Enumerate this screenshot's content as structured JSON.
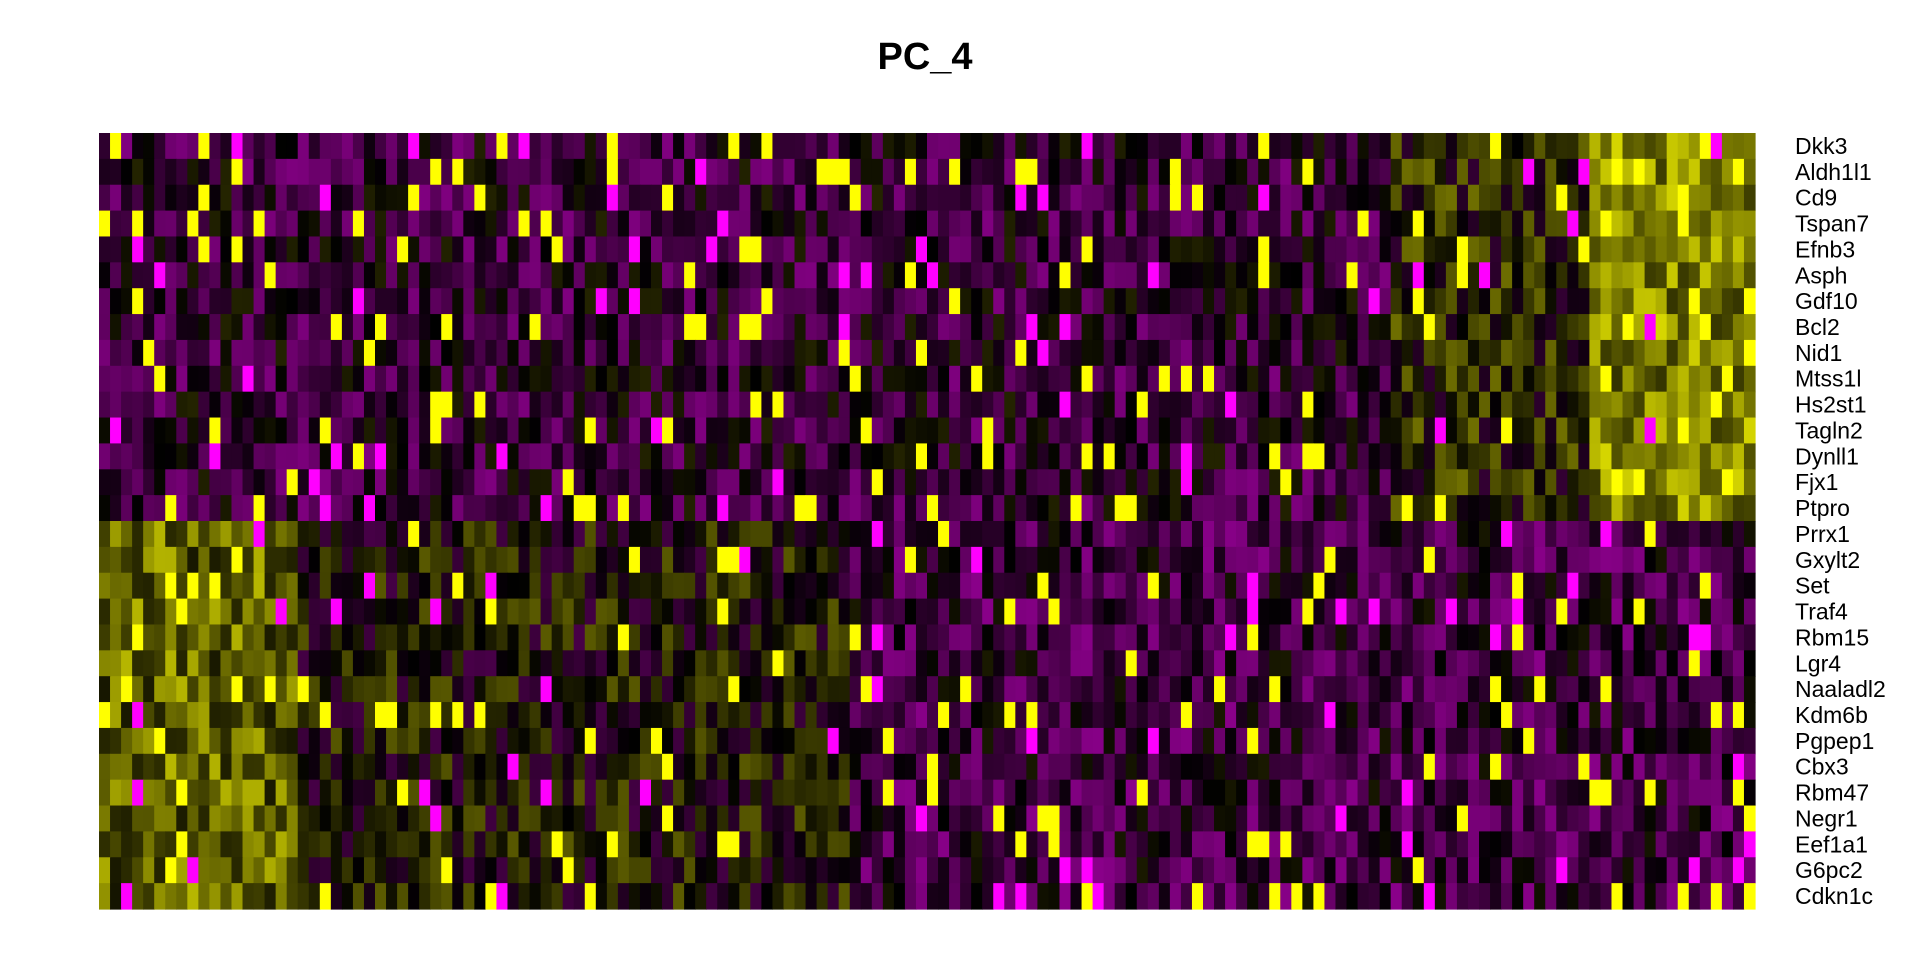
{
  "chart_data": {
    "type": "heatmap",
    "title": "PC_4",
    "xlabel": "",
    "ylabel": "",
    "rows": [
      "Dkk3",
      "Aldh1l1",
      "Cd9",
      "Tspan7",
      "Efnb3",
      "Asph",
      "Gdf10",
      "Bcl2",
      "Nid1",
      "Mtss1l",
      "Hs2st1",
      "Tagln2",
      "Dynll1",
      "Fjx1",
      "Ptpro",
      "Prrx1",
      "Gxylt2",
      "Set",
      "Traf4",
      "Rbm15",
      "Lgr4",
      "Naaladl2",
      "Kdm6b",
      "Pgpep1",
      "Cbx3",
      "Rbm47",
      "Negr1",
      "Eef1a1",
      "G6pc2",
      "Cdkn1c"
    ],
    "columns_count": 150,
    "value_range": [
      -2.5,
      2.5
    ],
    "colorscale": {
      "low": "#ff00ff",
      "mid": "#000000",
      "high": "#ffff00"
    },
    "legend": "none",
    "grid": false
  }
}
